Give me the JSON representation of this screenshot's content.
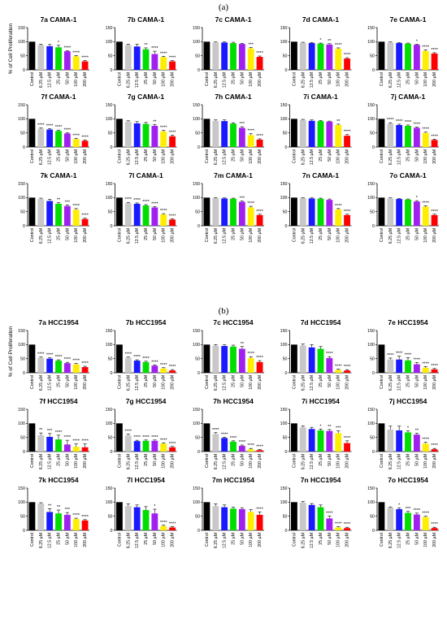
{
  "figure": {
    "panel_a_label": "(a)",
    "panel_b_label": "(b)",
    "ylabel": "% of Cell Proliferation",
    "categories": [
      "Control",
      "6.25 µM",
      "12.5 µM",
      "25 µM",
      "50 µM",
      "100 µM",
      "200 µM"
    ],
    "y_ticks": [
      "0",
      "50",
      "100",
      "150"
    ],
    "colors": [
      "#000000",
      "#c8c8c8",
      "#1a1aff",
      "#00dd00",
      "#a020f0",
      "#ffee00",
      "#ff0000"
    ]
  },
  "chart_data": [
    {
      "type": "bar",
      "title": "7a CAMA-1",
      "ylim": [
        0,
        150
      ],
      "values": [
        100,
        88,
        84,
        80,
        66,
        48,
        30
      ],
      "errors": [
        0,
        3,
        6,
        7,
        2,
        3,
        3
      ],
      "sig": [
        "",
        "",
        "",
        "*",
        "****",
        "****",
        "****"
      ]
    },
    {
      "type": "bar",
      "title": "7b CAMA-1",
      "ylim": [
        0,
        150
      ],
      "values": [
        100,
        88,
        83,
        73,
        56,
        45,
        30
      ],
      "errors": [
        0,
        3,
        8,
        5,
        10,
        3,
        3
      ],
      "sig": [
        "",
        "",
        "",
        "**",
        "****",
        "****",
        "****"
      ]
    },
    {
      "type": "bar",
      "title": "7c CAMA-1",
      "ylim": [
        0,
        150
      ],
      "values": [
        100,
        97,
        97,
        95,
        92,
        76,
        46
      ],
      "errors": [
        0,
        2,
        2,
        3,
        2,
        4,
        3
      ],
      "sig": [
        "",
        "",
        "",
        "",
        "",
        "***",
        "****"
      ]
    },
    {
      "type": "bar",
      "title": "7d CAMA-1",
      "ylim": [
        0,
        150
      ],
      "values": [
        100,
        96,
        95,
        93,
        90,
        75,
        40
      ],
      "errors": [
        0,
        2,
        2,
        2,
        3,
        3,
        3
      ],
      "sig": [
        "",
        "",
        "",
        "*",
        "**",
        "****",
        "****"
      ]
    },
    {
      "type": "bar",
      "title": "7e CAMA-1",
      "ylim": [
        0,
        150
      ],
      "values": [
        100,
        97,
        95,
        93,
        89,
        67,
        58
      ],
      "errors": [
        0,
        2,
        2,
        2,
        2,
        4,
        3
      ],
      "sig": [
        "",
        "",
        "",
        "",
        "*",
        "****",
        "****"
      ]
    },
    {
      "type": "bar",
      "title": "7f CAMA-1",
      "ylim": [
        0,
        150
      ],
      "values": [
        100,
        65,
        62,
        57,
        48,
        28,
        22
      ],
      "errors": [
        0,
        3,
        3,
        3,
        3,
        3,
        3
      ],
      "sig": [
        "",
        "****",
        "****",
        "****",
        "****",
        "****",
        "****"
      ]
    },
    {
      "type": "bar",
      "title": "7g CAMA-1",
      "ylim": [
        0,
        150
      ],
      "values": [
        100,
        90,
        84,
        82,
        75,
        55,
        38
      ],
      "errors": [
        0,
        3,
        6,
        5,
        5,
        4,
        4
      ],
      "sig": [
        "",
        "",
        "",
        "",
        "**",
        "****",
        "****"
      ]
    },
    {
      "type": "bar",
      "title": "7h CAMA-1",
      "ylim": [
        0,
        150
      ],
      "values": [
        100,
        93,
        92,
        83,
        68,
        42,
        26
      ],
      "errors": [
        0,
        3,
        4,
        3,
        4,
        5,
        3
      ],
      "sig": [
        "",
        "",
        "",
        "",
        "***",
        "****",
        "****"
      ]
    },
    {
      "type": "bar",
      "title": "7i CAMA-1",
      "ylim": [
        0,
        150
      ],
      "values": [
        100,
        96,
        93,
        92,
        90,
        78,
        40
      ],
      "errors": [
        0,
        2,
        3,
        2,
        2,
        3,
        4
      ],
      "sig": [
        "",
        "",
        "",
        "",
        "",
        "**",
        "****"
      ]
    },
    {
      "type": "bar",
      "title": "7j CAMA-1",
      "ylim": [
        0,
        150
      ],
      "values": [
        100,
        83,
        78,
        75,
        68,
        50,
        25
      ],
      "errors": [
        0,
        3,
        3,
        3,
        3,
        3,
        3
      ],
      "sig": [
        "",
        "****",
        "****",
        "****",
        "****",
        "****",
        "****"
      ]
    },
    {
      "type": "bar",
      "title": "7k CAMA-1",
      "ylim": [
        0,
        150
      ],
      "values": [
        100,
        95,
        88,
        78,
        70,
        57,
        24
      ],
      "errors": [
        0,
        3,
        6,
        4,
        4,
        4,
        3
      ],
      "sig": [
        "",
        "",
        "",
        "**",
        "***",
        "****",
        "****"
      ]
    },
    {
      "type": "bar",
      "title": "7l CAMA-1",
      "ylim": [
        0,
        150
      ],
      "values": [
        100,
        80,
        78,
        72,
        65,
        40,
        22
      ],
      "errors": [
        0,
        3,
        3,
        3,
        3,
        3,
        3
      ],
      "sig": [
        "",
        "****",
        "****",
        "****",
        "****",
        "****",
        "****"
      ]
    },
    {
      "type": "bar",
      "title": "7m CAMA-1",
      "ylim": [
        0,
        150
      ],
      "values": [
        100,
        98,
        97,
        96,
        85,
        65,
        38
      ],
      "errors": [
        0,
        2,
        2,
        2,
        3,
        4,
        3
      ],
      "sig": [
        "",
        "",
        "",
        "",
        "***",
        "****",
        "****"
      ]
    },
    {
      "type": "bar",
      "title": "7n CAMA-1",
      "ylim": [
        0,
        150
      ],
      "values": [
        100,
        98,
        97,
        96,
        92,
        58,
        38
      ],
      "errors": [
        0,
        2,
        2,
        2,
        3,
        3,
        3
      ],
      "sig": [
        "",
        "",
        "",
        "",
        "",
        "****",
        "****"
      ]
    },
    {
      "type": "bar",
      "title": "7o CAMA-1",
      "ylim": [
        0,
        150
      ],
      "values": [
        100,
        97,
        95,
        93,
        86,
        68,
        38
      ],
      "errors": [
        0,
        2,
        2,
        2,
        3,
        3,
        3
      ],
      "sig": [
        "",
        "",
        "",
        "",
        "*",
        "****",
        "****"
      ]
    },
    {
      "type": "bar",
      "title": "7a HCC1954",
      "ylim": [
        0,
        150
      ],
      "values": [
        100,
        53,
        50,
        43,
        34,
        30,
        20
      ],
      "errors": [
        0,
        3,
        3,
        3,
        3,
        3,
        3
      ],
      "sig": [
        "",
        "****",
        "****",
        "****",
        "****",
        "****",
        "****"
      ]
    },
    {
      "type": "bar",
      "title": "7b HCC1954",
      "ylim": [
        0,
        150
      ],
      "values": [
        100,
        53,
        43,
        38,
        25,
        15,
        8
      ],
      "errors": [
        0,
        3,
        3,
        3,
        3,
        3,
        3
      ],
      "sig": [
        "",
        "****",
        "****",
        "****",
        "****",
        "****",
        "****"
      ]
    },
    {
      "type": "bar",
      "title": "7c HCC1954",
      "ylim": [
        0,
        150
      ],
      "values": [
        100,
        96,
        95,
        93,
        85,
        52,
        38
      ],
      "errors": [
        0,
        4,
        4,
        5,
        8,
        5,
        5
      ],
      "sig": [
        "",
        "",
        "",
        "",
        "**",
        "****",
        "****"
      ]
    },
    {
      "type": "bar",
      "title": "7d HCC1954",
      "ylim": [
        0,
        150
      ],
      "values": [
        100,
        97,
        90,
        85,
        52,
        10,
        8
      ],
      "errors": [
        0,
        5,
        10,
        8,
        5,
        3,
        3
      ],
      "sig": [
        "",
        "",
        "",
        "",
        "****",
        "****",
        "****"
      ]
    },
    {
      "type": "bar",
      "title": "7e HCC1954",
      "ylim": [
        0,
        150
      ],
      "values": [
        100,
        47,
        47,
        44,
        30,
        18,
        12
      ],
      "errors": [
        0,
        5,
        12,
        10,
        6,
        4,
        3
      ],
      "sig": [
        "",
        "****",
        "****",
        "****",
        "****",
        "****",
        "****"
      ]
    },
    {
      "type": "bar",
      "title": "7f HCC1954",
      "ylim": [
        0,
        150
      ],
      "values": [
        100,
        58,
        52,
        43,
        25,
        17,
        15
      ],
      "errors": [
        0,
        8,
        12,
        15,
        15,
        10,
        12
      ],
      "sig": [
        "",
        "**",
        "***",
        "****",
        "****",
        "****",
        "****"
      ]
    },
    {
      "type": "bar",
      "title": "7g HCC1954",
      "ylim": [
        0,
        150
      ],
      "values": [
        100,
        57,
        37,
        38,
        38,
        28,
        15
      ],
      "errors": [
        0,
        5,
        3,
        3,
        3,
        3,
        3
      ],
      "sig": [
        "",
        "****",
        "****",
        "****",
        "****",
        "****",
        "****"
      ]
    },
    {
      "type": "bar",
      "title": "7h HCC1954",
      "ylim": [
        0,
        150
      ],
      "values": [
        100,
        62,
        48,
        35,
        20,
        8,
        5
      ],
      "errors": [
        0,
        5,
        3,
        3,
        3,
        3,
        2
      ],
      "sig": [
        "",
        "****",
        "****",
        "****",
        "****",
        "****",
        "****"
      ]
    },
    {
      "type": "bar",
      "title": "7i HCC1954",
      "ylim": [
        0,
        150
      ],
      "values": [
        100,
        86,
        80,
        75,
        73,
        65,
        30
      ],
      "errors": [
        0,
        5,
        6,
        5,
        5,
        8,
        8
      ],
      "sig": [
        "",
        "",
        "",
        "*",
        "**",
        "***",
        "****"
      ]
    },
    {
      "type": "bar",
      "title": "7j HCC1954",
      "ylim": [
        0,
        150
      ],
      "values": [
        100,
        78,
        75,
        68,
        60,
        28,
        8
      ],
      "errors": [
        0,
        12,
        15,
        5,
        5,
        5,
        3
      ],
      "sig": [
        "",
        "",
        "",
        "*",
        "**",
        "****",
        "****"
      ]
    },
    {
      "type": "bar",
      "title": "7k HCC1954",
      "ylim": [
        0,
        150
      ],
      "values": [
        100,
        95,
        65,
        60,
        55,
        40,
        35
      ],
      "errors": [
        0,
        3,
        12,
        12,
        8,
        3,
        3
      ],
      "sig": [
        "",
        "",
        "**",
        "**",
        "***",
        "****",
        "****"
      ]
    },
    {
      "type": "bar",
      "title": "7l HCC1954",
      "ylim": [
        0,
        150
      ],
      "values": [
        100,
        86,
        82,
        72,
        60,
        15,
        10
      ],
      "errors": [
        0,
        8,
        8,
        12,
        15,
        3,
        3
      ],
      "sig": [
        "",
        "",
        "",
        "",
        "*",
        "****",
        "****"
      ]
    },
    {
      "type": "bar",
      "title": "7m HCC1954",
      "ylim": [
        0,
        150
      ],
      "values": [
        100,
        86,
        82,
        77,
        75,
        65,
        55
      ],
      "errors": [
        0,
        8,
        8,
        5,
        5,
        8,
        10
      ],
      "sig": [
        "",
        "",
        "",
        "",
        "",
        "",
        "****"
      ]
    },
    {
      "type": "bar",
      "title": "7n HCC1954",
      "ylim": [
        0,
        150
      ],
      "values": [
        100,
        98,
        90,
        82,
        42,
        10,
        8
      ],
      "errors": [
        0,
        5,
        5,
        8,
        8,
        3,
        3
      ],
      "sig": [
        "",
        "",
        "",
        "",
        "****",
        "****",
        "****"
      ]
    },
    {
      "type": "bar",
      "title": "7o HCC1954",
      "ylim": [
        0,
        150
      ],
      "values": [
        100,
        80,
        75,
        62,
        56,
        47,
        8
      ],
      "errors": [
        0,
        3,
        5,
        5,
        5,
        3,
        3
      ],
      "sig": [
        "",
        "",
        "*",
        "***",
        "****",
        "****",
        "****"
      ]
    }
  ]
}
